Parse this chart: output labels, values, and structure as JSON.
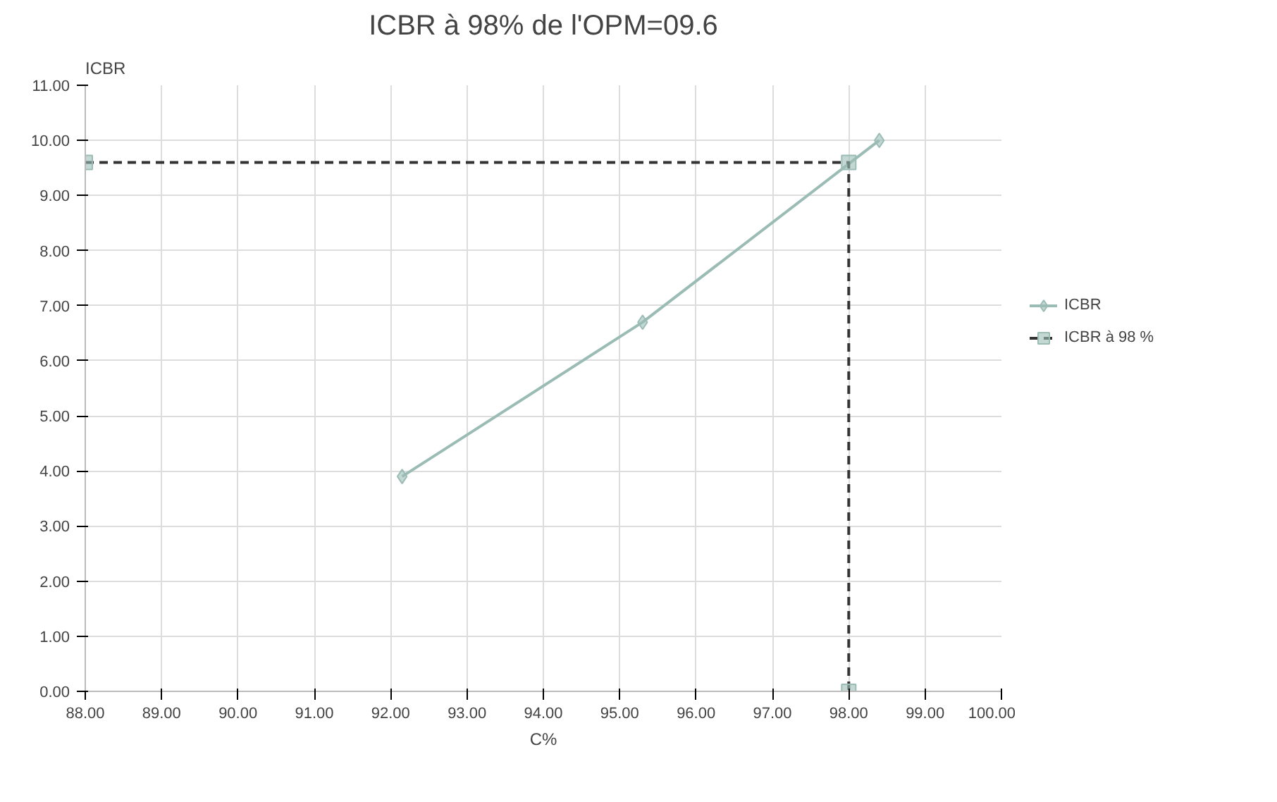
{
  "chart_data": {
    "type": "line",
    "title": "ICBR à 98% de l'OPM=09.6",
    "xlabel": "C%",
    "ylabel": "ICBR",
    "xlim": [
      88,
      100
    ],
    "ylim": [
      0,
      11
    ],
    "xticks": [
      {
        "value": 88,
        "label": "88.00"
      },
      {
        "value": 89,
        "label": "89.00"
      },
      {
        "value": 90,
        "label": "90.00"
      },
      {
        "value": 91,
        "label": "91.00"
      },
      {
        "value": 92,
        "label": "92.00"
      },
      {
        "value": 93,
        "label": "93.00"
      },
      {
        "value": 94,
        "label": "94.00"
      },
      {
        "value": 95,
        "label": "95.00"
      },
      {
        "value": 96,
        "label": "96.00"
      },
      {
        "value": 97,
        "label": "97.00"
      },
      {
        "value": 98,
        "label": "98.00"
      },
      {
        "value": 99,
        "label": "99.00"
      },
      {
        "value": 100,
        "label": "100.00"
      }
    ],
    "yticks": [
      {
        "value": 0,
        "label": "0.00"
      },
      {
        "value": 1,
        "label": "1.00"
      },
      {
        "value": 2,
        "label": "2.00"
      },
      {
        "value": 3,
        "label": "3.00"
      },
      {
        "value": 4,
        "label": "4.00"
      },
      {
        "value": 5,
        "label": "5.00"
      },
      {
        "value": 6,
        "label": "6.00"
      },
      {
        "value": 7,
        "label": "7.00"
      },
      {
        "value": 8,
        "label": "8.00"
      },
      {
        "value": 9,
        "label": "9.00"
      },
      {
        "value": 10,
        "label": "10.00"
      },
      {
        "value": 11,
        "label": "11.00"
      }
    ],
    "grid": true,
    "legend": "right",
    "series": [
      {
        "name": "ICBR",
        "color": "#9bbcb5",
        "x": [
          92.15,
          95.3,
          98.4
        ],
        "values": [
          3.9,
          6.7,
          10.0
        ],
        "marker": "diamond",
        "line_style": "solid"
      },
      {
        "name": "ICBR à 98 %",
        "color": "#333333",
        "x": [
          88,
          98,
          98
        ],
        "values": [
          9.6,
          9.6,
          0
        ],
        "marker": "square",
        "line_style": "dashed"
      }
    ]
  }
}
